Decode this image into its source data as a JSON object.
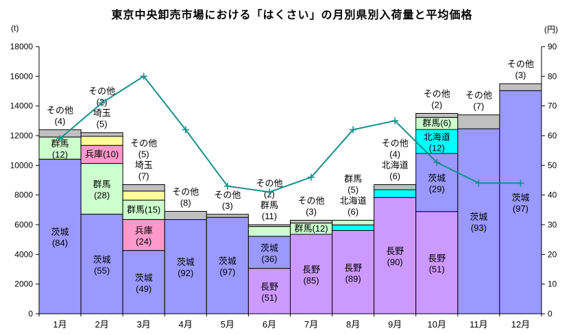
{
  "chart_data": {
    "type": "bar",
    "subtype": "stacked-bar-with-line-overlay",
    "title": "東京中央卸売市場における「はくさい」の月別県別入荷量と平均価格",
    "categories": [
      "1月",
      "2月",
      "3月",
      "4月",
      "5月",
      "6月",
      "7月",
      "8月",
      "9月",
      "10月",
      "11月",
      "12月"
    ],
    "left_axis": {
      "unit": "(t)",
      "min": 0,
      "max": 18000,
      "step": 2000
    },
    "right_axis": {
      "unit": "(円)",
      "min": 0,
      "max": 90,
      "step": 10
    },
    "grid": "off",
    "legend": "none",
    "bar_totals_t": [
      12400,
      12200,
      8700,
      6900,
      6700,
      6000,
      6300,
      6300,
      8700,
      13500,
      13400,
      15500
    ],
    "months": [
      {
        "month": "1月",
        "total_t": 12400,
        "segments": [
          {
            "pref": "茨城",
            "pct": 84,
            "label": "in2"
          },
          {
            "pref": "群馬",
            "pct": 12,
            "label": "in2"
          },
          {
            "pref": "その他",
            "pct": 4,
            "label": "out"
          }
        ]
      },
      {
        "month": "2月",
        "total_t": 12200,
        "segments": [
          {
            "pref": "茨城",
            "pct": 55,
            "label": "in2"
          },
          {
            "pref": "群馬",
            "pct": 28,
            "label": "in2"
          },
          {
            "pref": "兵庫",
            "pct": 10,
            "label": "in1"
          },
          {
            "pref": "埼玉",
            "pct": 5,
            "label": "out"
          },
          {
            "pref": "その他",
            "pct": 2,
            "label": "out"
          }
        ]
      },
      {
        "month": "3月",
        "total_t": 8700,
        "segments": [
          {
            "pref": "茨城",
            "pct": 49,
            "label": "in2"
          },
          {
            "pref": "兵庫",
            "pct": 24,
            "label": "in2"
          },
          {
            "pref": "群馬",
            "pct": 15,
            "label": "in1"
          },
          {
            "pref": "埼玉",
            "pct": 7,
            "label": "out"
          },
          {
            "pref": "その他",
            "pct": 5,
            "label": "out"
          }
        ]
      },
      {
        "month": "4月",
        "total_t": 6900,
        "segments": [
          {
            "pref": "茨城",
            "pct": 92,
            "label": "in2"
          },
          {
            "pref": "その他",
            "pct": 8,
            "label": "out"
          }
        ]
      },
      {
        "month": "5月",
        "total_t": 6700,
        "segments": [
          {
            "pref": "茨城",
            "pct": 97,
            "label": "in2"
          },
          {
            "pref": "その他",
            "pct": 3,
            "label": "out"
          }
        ]
      },
      {
        "month": "6月",
        "total_t": 6000,
        "segments": [
          {
            "pref": "長野",
            "pct": 51,
            "label": "in2"
          },
          {
            "pref": "茨城",
            "pct": 36,
            "label": "in2"
          },
          {
            "pref": "群馬",
            "pct": 11,
            "label": "out"
          },
          {
            "pref": "その他",
            "pct": 2,
            "label": "out"
          }
        ]
      },
      {
        "month": "7月",
        "total_t": 6300,
        "segments": [
          {
            "pref": "長野",
            "pct": 85,
            "label": "in2"
          },
          {
            "pref": "群馬",
            "pct": 12,
            "label": "in1"
          },
          {
            "pref": "その他",
            "pct": 3,
            "label": "out"
          }
        ]
      },
      {
        "month": "8月",
        "total_t": 6300,
        "segments": [
          {
            "pref": "長野",
            "pct": 89,
            "label": "in2"
          },
          {
            "pref": "北海道",
            "pct": 6,
            "label": "out"
          },
          {
            "pref": "群馬",
            "pct": 5,
            "label": "out"
          }
        ]
      },
      {
        "month": "9月",
        "total_t": 8700,
        "segments": [
          {
            "pref": "長野",
            "pct": 90,
            "label": "in2"
          },
          {
            "pref": "北海道",
            "pct": 6,
            "label": "out"
          },
          {
            "pref": "その他",
            "pct": 4,
            "label": "out"
          }
        ]
      },
      {
        "month": "10月",
        "total_t": 13500,
        "segments": [
          {
            "pref": "長野",
            "pct": 51,
            "label": "in2"
          },
          {
            "pref": "茨城",
            "pct": 29,
            "label": "in2"
          },
          {
            "pref": "北海道",
            "pct": 12,
            "label": "in2"
          },
          {
            "pref": "群馬",
            "pct": 6,
            "label": "in1"
          },
          {
            "pref": "その他",
            "pct": 2,
            "label": "out"
          }
        ]
      },
      {
        "month": "11月",
        "total_t": 13400,
        "segments": [
          {
            "pref": "茨城",
            "pct": 93,
            "label": "in2"
          },
          {
            "pref": "その他",
            "pct": 7,
            "label": "out"
          }
        ]
      },
      {
        "month": "12月",
        "total_t": 15500,
        "segments": [
          {
            "pref": "茨城",
            "pct": 97,
            "label": "in2"
          },
          {
            "pref": "その他",
            "pct": 3,
            "label": "out"
          }
        ]
      }
    ],
    "line": {
      "name": "平均価格",
      "unit": "円",
      "values_yen": [
        59,
        71,
        80,
        62,
        43,
        41,
        46,
        62,
        65,
        51,
        44,
        44
      ]
    },
    "palette": {
      "茨城": "#9999FF",
      "群馬": "#CCFFCC",
      "兵庫": "#FF99CC",
      "埼玉": "#FFFF99",
      "長野": "#CC99FF",
      "北海道": "#00FFFF",
      "その他": "#C0C0C0"
    },
    "line_color": "#128F88",
    "axis_color": "#000000",
    "background_color": "#FFFFFF"
  }
}
